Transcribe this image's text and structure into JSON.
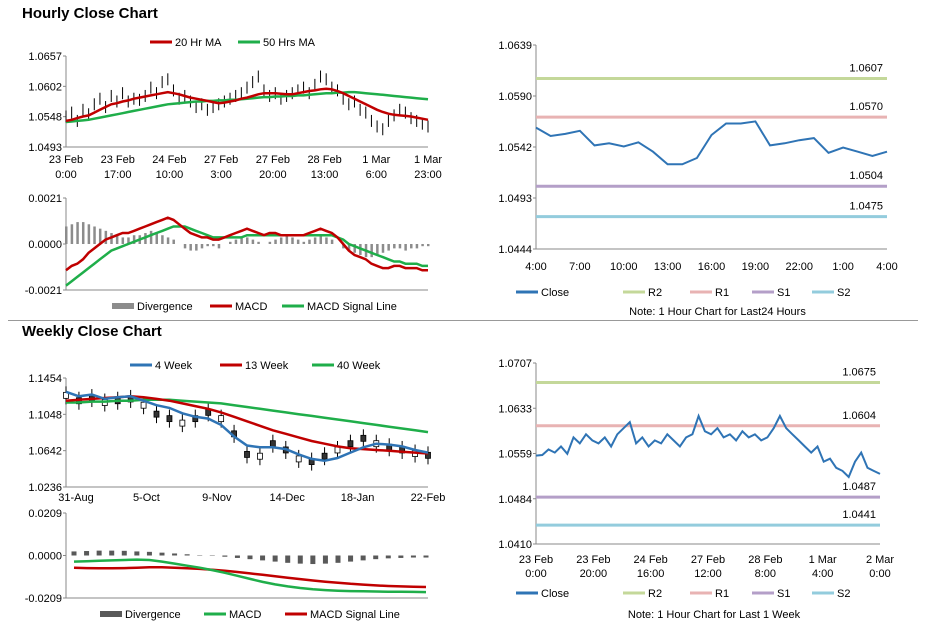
{
  "sections": {
    "hourly_title": "Hourly Close Chart",
    "weekly_title": "Weekly Close Chart"
  },
  "colors": {
    "price": "#000000",
    "ma_red": "#c00000",
    "ma_green": "#1fae4a",
    "blue": "#2f74b5",
    "divergence": "#8c8c8c",
    "divergence_dark": "#595959",
    "r2": "#c4d89a",
    "r1": "#e8b3b3",
    "s1": "#b49fc8",
    "s2": "#93ccdd"
  },
  "chart_data": [
    {
      "id": "hourly_price",
      "type": "line",
      "legend": [
        "20 Hr MA",
        "50 Hrs MA"
      ],
      "ylim": [
        1.0493,
        1.0657
      ],
      "yticks": [
        "1.0657",
        "1.0602",
        "1.0548",
        "1.0493"
      ],
      "xticks": [
        [
          "23 Feb",
          "0:00"
        ],
        [
          "23 Feb",
          "17:00"
        ],
        [
          "24 Feb",
          "10:00"
        ],
        [
          "27 Feb",
          "3:00"
        ],
        [
          "27 Feb",
          "20:00"
        ],
        [
          "28 Feb",
          "13:00"
        ],
        [
          "1 Mar",
          "6:00"
        ],
        [
          "1 Mar",
          "23:00"
        ]
      ],
      "price": [
        1.0548,
        1.0555,
        1.054,
        1.056,
        1.0552,
        1.057,
        1.058,
        1.0565,
        1.0585,
        1.0575,
        1.059,
        1.0575,
        1.058,
        1.0578,
        1.0585,
        1.06,
        1.059,
        1.061,
        1.0615,
        1.0595,
        1.058,
        1.0585,
        1.0575,
        1.0565,
        1.057,
        1.056,
        1.0565,
        1.057,
        1.0575,
        1.058,
        1.0585,
        1.059,
        1.06,
        1.061,
        1.062,
        1.0595,
        1.0585,
        1.059,
        1.058,
        1.0585,
        1.059,
        1.0595,
        1.06,
        1.059,
        1.0605,
        1.062,
        1.0615,
        1.06,
        1.0595,
        1.058,
        1.057,
        1.0575,
        1.056,
        1.0555,
        1.054,
        1.053,
        1.0525,
        1.054,
        1.055,
        1.056,
        1.0555,
        1.0545,
        1.054,
        1.0535,
        1.053
      ],
      "ma20": [
        1.054,
        1.0542,
        1.0545,
        1.0548,
        1.055,
        1.0555,
        1.056,
        1.0565,
        1.057,
        1.0572,
        1.0575,
        1.0577,
        1.058,
        1.0582,
        1.0584,
        1.0586,
        1.0588,
        1.059,
        1.0592,
        1.059,
        1.0588,
        1.0585,
        1.0582,
        1.058,
        1.0578,
        1.0576,
        1.0574,
        1.0572,
        1.0573,
        1.0575,
        1.0577,
        1.058,
        1.0582,
        1.0585,
        1.0588,
        1.059,
        1.059,
        1.059,
        1.0589,
        1.0588,
        1.0588,
        1.059,
        1.0592,
        1.0594,
        1.0595,
        1.0597,
        1.0598,
        1.0597,
        1.0594,
        1.059,
        1.0585,
        1.058,
        1.0575,
        1.057,
        1.0565,
        1.056,
        1.0556,
        1.0553,
        1.0551,
        1.055,
        1.0549,
        1.0548,
        1.0546,
        1.0544,
        1.0542
      ],
      "ma50": [
        1.0538,
        1.0539,
        1.054,
        1.0541,
        1.0542,
        1.0544,
        1.0546,
        1.0548,
        1.055,
        1.0552,
        1.0554,
        1.0556,
        1.0558,
        1.056,
        1.0562,
        1.0564,
        1.0566,
        1.0568,
        1.057,
        1.0571,
        1.0572,
        1.0573,
        1.0574,
        1.0575,
        1.0575,
        1.0576,
        1.0576,
        1.0577,
        1.0577,
        1.0578,
        1.0578,
        1.0579,
        1.058,
        1.0581,
        1.0582,
        1.0583,
        1.0583,
        1.0584,
        1.0584,
        1.0585,
        1.0585,
        1.0586,
        1.0586,
        1.0587,
        1.0588,
        1.0589,
        1.059,
        1.059,
        1.0591,
        1.0591,
        1.0592,
        1.0592,
        1.0591,
        1.059,
        1.0589,
        1.0588,
        1.0587,
        1.0586,
        1.0585,
        1.0584,
        1.0583,
        1.0582,
        1.0581,
        1.058,
        1.0579
      ]
    },
    {
      "id": "hourly_macd",
      "type": "bar+line",
      "legend": [
        "Divergence",
        "MACD",
        "MACD Signal Line"
      ],
      "ylim": [
        -0.0021,
        0.0021
      ],
      "yticks": [
        "0.0021",
        "0.0000",
        "-0.0021"
      ],
      "divergence": [
        0.0008,
        0.0009,
        0.001,
        0.001,
        0.0009,
        0.0008,
        0.0007,
        0.0006,
        0.0005,
        0.0004,
        0.0003,
        0.0003,
        0.0004,
        0.0004,
        0.0005,
        0.0006,
        0.0005,
        0.0004,
        0.0003,
        0.0002,
        0.0,
        -0.0002,
        -0.0003,
        -0.0003,
        -0.0002,
        -0.0001,
        -0.0001,
        -0.0002,
        0.0,
        0.0001,
        0.0002,
        0.0003,
        0.0003,
        0.0002,
        0.0001,
        0.0,
        0.0001,
        0.0002,
        0.0003,
        0.0004,
        0.0003,
        0.0002,
        0.0001,
        0.0002,
        0.0003,
        0.0004,
        0.0003,
        0.0002,
        0.0,
        -0.0002,
        -0.0003,
        -0.0004,
        -0.0005,
        -0.0006,
        -0.0006,
        -0.0005,
        -0.0004,
        -0.0003,
        -0.0002,
        -0.0002,
        -0.0003,
        -0.0002,
        -0.0002,
        -0.0001,
        -0.0001
      ],
      "macd": [
        -0.0012,
        -0.001,
        -0.0009,
        -0.0007,
        -0.0004,
        -0.0002,
        0.0,
        0.0002,
        0.0003,
        0.0004,
        0.0005,
        0.0005,
        0.0006,
        0.0007,
        0.0008,
        0.0009,
        0.001,
        0.0011,
        0.0012,
        0.0011,
        0.0009,
        0.0007,
        0.0005,
        0.0004,
        0.0003,
        0.0003,
        0.0002,
        0.0002,
        0.0003,
        0.0004,
        0.0005,
        0.0006,
        0.0007,
        0.0006,
        0.0005,
        0.0004,
        0.0005,
        0.0005,
        0.0004,
        0.0004,
        0.0004,
        0.0004,
        0.0004,
        0.0005,
        0.0006,
        0.0007,
        0.0006,
        0.0005,
        0.0003,
        0.0,
        -0.0003,
        -0.0005,
        -0.0006,
        -0.0007,
        -0.0009,
        -0.001,
        -0.0011,
        -0.0011,
        -0.001,
        -0.001,
        -0.0011,
        -0.0011,
        -0.0011,
        -0.0012,
        -0.0012
      ],
      "signal": [
        -0.0019,
        -0.0017,
        -0.0015,
        -0.0013,
        -0.0011,
        -0.0009,
        -0.0007,
        -0.0005,
        -0.0003,
        -0.0002,
        -0.0001,
        0.0,
        0.0001,
        0.0002,
        0.0003,
        0.0004,
        0.0005,
        0.0006,
        0.0007,
        0.0008,
        0.0008,
        0.0008,
        0.0007,
        0.0006,
        0.0005,
        0.0004,
        0.0003,
        0.0003,
        0.0003,
        0.0003,
        0.0003,
        0.0003,
        0.0004,
        0.0004,
        0.0004,
        0.0004,
        0.0004,
        0.0004,
        0.0004,
        0.0004,
        0.0004,
        0.0004,
        0.0004,
        0.0004,
        0.0004,
        0.0004,
        0.0004,
        0.0004,
        0.0003,
        0.0002,
        0.0,
        -0.0001,
        -0.0002,
        -0.0003,
        -0.0004,
        -0.0005,
        -0.0006,
        -0.0007,
        -0.0008,
        -0.0008,
        -0.0009,
        -0.0009,
        -0.0009,
        -0.001,
        -0.001
      ]
    },
    {
      "id": "hourly_24h",
      "type": "line",
      "legend": [
        "Close",
        "R2",
        "R1",
        "S1",
        "S2"
      ],
      "note": "Note: 1 Hour Chart for Last24 Hours",
      "ylim": [
        1.0444,
        1.0639
      ],
      "yticks": [
        "1.0639",
        "1.0590",
        "1.0542",
        "1.0493",
        "1.0444"
      ],
      "xticks": [
        "4:00",
        "7:00",
        "10:00",
        "13:00",
        "16:00",
        "19:00",
        "22:00",
        "1:00",
        "4:00"
      ],
      "levels": [
        {
          "name": "R2",
          "value": 1.0607,
          "label": "1.0607"
        },
        {
          "name": "R1",
          "value": 1.057,
          "label": "1.0570"
        },
        {
          "name": "S1",
          "value": 1.0504,
          "label": "1.0504"
        },
        {
          "name": "S2",
          "value": 1.0475,
          "label": "1.0475"
        }
      ],
      "close": [
        1.056,
        1.0552,
        1.0554,
        1.0557,
        1.0543,
        1.0545,
        1.0542,
        1.0546,
        1.0537,
        1.0525,
        1.0525,
        1.0531,
        1.0553,
        1.0564,
        1.0564,
        1.0566,
        1.0543,
        1.0545,
        1.0548,
        1.055,
        1.0536,
        1.0541,
        1.0537,
        1.0533,
        1.0537
      ]
    },
    {
      "id": "weekly_price",
      "type": "line",
      "legend": [
        "4 Week",
        "13 Week",
        "40 Week"
      ],
      "ylim": [
        1.0236,
        1.1454
      ],
      "yticks": [
        "1.1454",
        "1.1048",
        "1.0642",
        "1.0236"
      ],
      "xticks": [
        "31-Aug",
        "5-Oct",
        "9-Nov",
        "14-Dec",
        "18-Jan",
        "22-Feb"
      ],
      "close": [
        1.126,
        1.12,
        1.123,
        1.118,
        1.12,
        1.122,
        1.115,
        1.105,
        1.1,
        1.095,
        1.1,
        1.107,
        1.1,
        1.083,
        1.06,
        1.058,
        1.072,
        1.065,
        1.055,
        1.052,
        1.058,
        1.065,
        1.072,
        1.078,
        1.072,
        1.068,
        1.065,
        1.061,
        1.059
      ],
      "w4": [
        1.13,
        1.125,
        1.127,
        1.122,
        1.124,
        1.125,
        1.12,
        1.115,
        1.112,
        1.106,
        1.102,
        1.1,
        1.093,
        1.08,
        1.07,
        1.068,
        1.068,
        1.066,
        1.06,
        1.055,
        1.053,
        1.056,
        1.062,
        1.068,
        1.072,
        1.071,
        1.069,
        1.065,
        1.062
      ],
      "w13": [
        1.12,
        1.121,
        1.122,
        1.123,
        1.124,
        1.125,
        1.124,
        1.122,
        1.12,
        1.117,
        1.114,
        1.111,
        1.107,
        1.102,
        1.097,
        1.092,
        1.087,
        1.083,
        1.079,
        1.075,
        1.072,
        1.069,
        1.067,
        1.066,
        1.065,
        1.064,
        1.063,
        1.062,
        1.061
      ],
      "w40": [
        1.118,
        1.118,
        1.119,
        1.119,
        1.12,
        1.12,
        1.121,
        1.121,
        1.121,
        1.12,
        1.119,
        1.118,
        1.117,
        1.115,
        1.113,
        1.111,
        1.109,
        1.107,
        1.105,
        1.103,
        1.101,
        1.099,
        1.097,
        1.095,
        1.093,
        1.091,
        1.089,
        1.087,
        1.085
      ]
    },
    {
      "id": "weekly_macd",
      "type": "bar+line",
      "legend": [
        "Divergence",
        "MACD",
        "MACD Signal Line"
      ],
      "ylim": [
        -0.0209,
        0.0209
      ],
      "yticks": [
        "0.0209",
        "0.0000",
        "-0.0209"
      ],
      "divergence": [
        0.002,
        0.0022,
        0.0024,
        0.0024,
        0.0023,
        0.002,
        0.0018,
        0.0014,
        0.001,
        0.0006,
        0.0002,
        -0.0002,
        -0.0006,
        -0.0012,
        -0.0018,
        -0.0024,
        -0.003,
        -0.0036,
        -0.004,
        -0.0042,
        -0.004,
        -0.0036,
        -0.003,
        -0.0024,
        -0.0018,
        -0.0014,
        -0.0012,
        -0.001,
        -0.001
      ],
      "macd": [
        -0.003,
        -0.0028,
        -0.0026,
        -0.0024,
        -0.0022,
        -0.002,
        -0.0022,
        -0.003,
        -0.004,
        -0.005,
        -0.006,
        -0.0072,
        -0.0085,
        -0.01,
        -0.0115,
        -0.013,
        -0.0142,
        -0.0152,
        -0.016,
        -0.0166,
        -0.017,
        -0.0173,
        -0.0175,
        -0.0176,
        -0.0177,
        -0.0178,
        -0.0178,
        -0.0179,
        -0.018
      ],
      "signal": [
        -0.006,
        -0.0062,
        -0.0063,
        -0.0063,
        -0.0062,
        -0.006,
        -0.0058,
        -0.0058,
        -0.006,
        -0.0063,
        -0.0066,
        -0.007,
        -0.0075,
        -0.0081,
        -0.0088,
        -0.0095,
        -0.0102,
        -0.0109,
        -0.0116,
        -0.0123,
        -0.0129,
        -0.0134,
        -0.0139,
        -0.0143,
        -0.0147,
        -0.015,
        -0.0152,
        -0.0154,
        -0.0155
      ]
    },
    {
      "id": "weekly_1w",
      "type": "line",
      "legend": [
        "Close",
        "R2",
        "R1",
        "S1",
        "S2"
      ],
      "note": "Note: 1 Hour Chart for Last 1 Week",
      "ylim": [
        1.041,
        1.0707
      ],
      "yticks": [
        "1.0707",
        "1.0633",
        "1.0559",
        "1.0484",
        "1.0410"
      ],
      "xticks": [
        [
          "23 Feb",
          "0:00"
        ],
        [
          "23 Feb",
          "20:00"
        ],
        [
          "24 Feb",
          "16:00"
        ],
        [
          "27 Feb",
          "12:00"
        ],
        [
          "28 Feb",
          "8:00"
        ],
        [
          "1 Mar",
          "4:00"
        ],
        [
          "2 Mar",
          "0:00"
        ]
      ],
      "levels": [
        {
          "name": "R2",
          "value": 1.0675,
          "label": "1.0675"
        },
        {
          "name": "R1",
          "value": 1.0604,
          "label": "1.0604"
        },
        {
          "name": "S1",
          "value": 1.0487,
          "label": "1.0487"
        },
        {
          "name": "S2",
          "value": 1.0441,
          "label": "1.0441"
        }
      ],
      "close": [
        1.0555,
        1.0556,
        1.0565,
        1.056,
        1.057,
        1.0558,
        1.0585,
        1.0575,
        1.059,
        1.058,
        1.0575,
        1.0585,
        1.057,
        1.059,
        1.06,
        1.061,
        1.0575,
        1.0585,
        1.057,
        1.058,
        1.0575,
        1.059,
        1.058,
        1.057,
        1.0585,
        1.059,
        1.062,
        1.0595,
        1.059,
        1.06,
        1.0585,
        1.059,
        1.058,
        1.0595,
        1.0585,
        1.059,
        1.058,
        1.0585,
        1.06,
        1.062,
        1.06,
        1.059,
        1.058,
        1.057,
        1.056,
        1.057,
        1.0545,
        1.055,
        1.0535,
        1.053,
        1.052,
        1.0545,
        1.056,
        1.0535,
        1.053,
        1.0525
      ]
    }
  ]
}
